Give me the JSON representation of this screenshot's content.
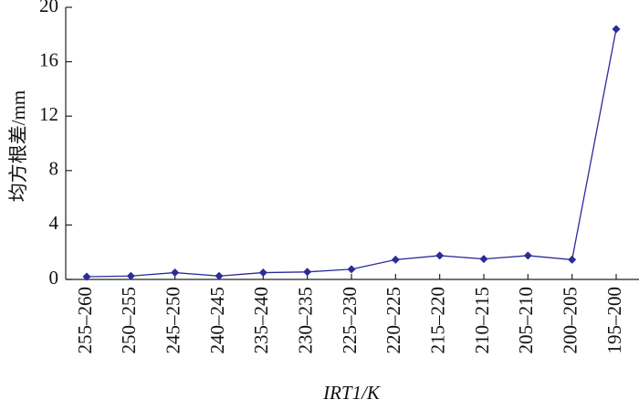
{
  "chart_data": {
    "type": "line",
    "y_label": "均方根差/mm",
    "x_label": "IRT1/K",
    "categories": [
      "255–260",
      "250–255",
      "245–250",
      "240–245",
      "235–240",
      "230–235",
      "225–230",
      "220–225",
      "215–220",
      "210–215",
      "205–210",
      "200–205",
      "195–200"
    ],
    "values": [
      0.2,
      0.25,
      0.5,
      0.25,
      0.5,
      0.55,
      0.75,
      1.45,
      1.75,
      1.5,
      1.75,
      1.45,
      18.4
    ],
    "color": "#2b2b9a",
    "ylim": [
      0,
      20
    ],
    "yticks": [
      0,
      4,
      8,
      12,
      16,
      20
    ]
  }
}
